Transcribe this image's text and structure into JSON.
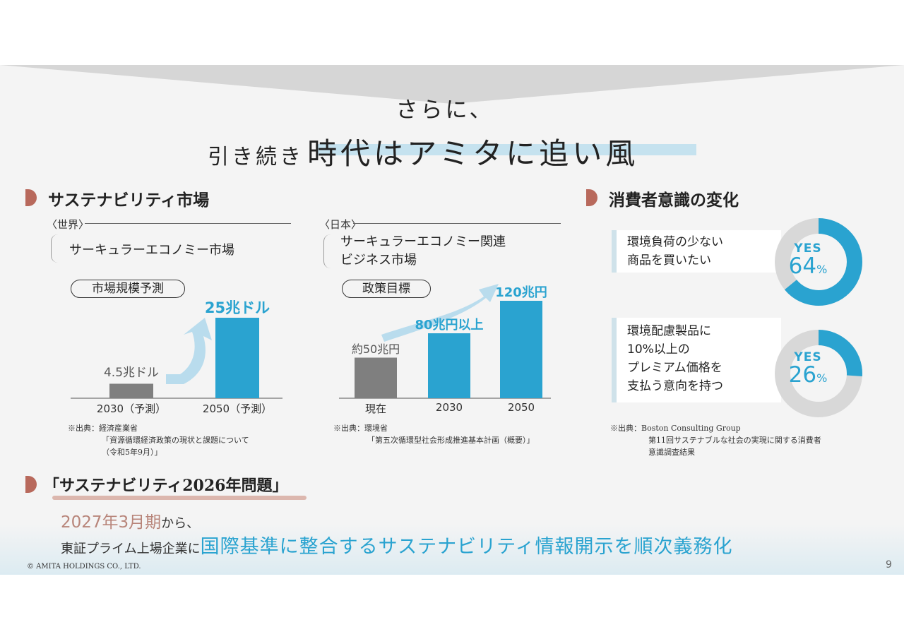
{
  "title": {
    "line1": "さらに、",
    "prefix": "引き続き",
    "emphasis": "時代はアミタに追い風"
  },
  "market": {
    "heading": "サステナビリティ市場",
    "world": {
      "region": "〈世界〉",
      "subject": "サーキュラーエコノミー市場",
      "badge": "市場規模予測",
      "chart_data": {
        "type": "bar",
        "categories": [
          "2030（予測）",
          "2050（予測）"
        ],
        "values": [
          4.5,
          25
        ],
        "value_labels": [
          "4.5兆ドル",
          "25兆ドル"
        ],
        "colors": [
          "#7f7f7f",
          "#2aa3d0"
        ]
      },
      "source": [
        "※出典：経済産業省",
        "「資源循環経済政策の現状と課題について",
        "（令和5年9月）」"
      ]
    },
    "japan": {
      "region": "〈日本〉",
      "subject": [
        "サーキュラーエコノミー関連",
        "ビジネス市場"
      ],
      "badge": "政策目標",
      "chart_data": {
        "type": "bar",
        "categories": [
          "現在",
          "2030",
          "2050"
        ],
        "values": [
          50,
          80,
          120
        ],
        "value_labels": [
          "約50兆円",
          "80兆円以上",
          "120兆円"
        ],
        "colors": [
          "#7f7f7f",
          "#2aa3d0",
          "#2aa3d0"
        ]
      },
      "source": [
        "※出典：環境省",
        "「第五次循環型社会形成推進基本計画（概要）」"
      ]
    }
  },
  "consumer": {
    "heading": "消費者意識の変化",
    "items": [
      {
        "lines": [
          "環境負荷の少ない",
          "商品を買いたい"
        ],
        "yes": "YES",
        "pct": "64",
        "unit": "%",
        "value": 64
      },
      {
        "lines": [
          "環境配慮製品に",
          "10%以上の",
          "プレミアム価格を",
          "支払う意向を持つ"
        ],
        "yes": "YES",
        "pct": "26",
        "unit": "%",
        "value": 26
      }
    ],
    "source": [
      "※出典：Boston Consulting Group",
      "第11回サステナブルな社会の実現に関する消費者",
      "意識調査結果"
    ]
  },
  "issue": {
    "heading": "「サステナビリティ2026年問題」",
    "date": "2027年3月期",
    "date_suffix": "から、",
    "target": "東証プライム上場企業に",
    "statement": "国際基準に整合するサステナビリティ情報開示を順次義務化"
  },
  "footer": {
    "copyright": "© AMITA HOLDINGS CO., LTD.",
    "page": "9"
  },
  "colors": {
    "accent_blue": "#2aa3d0",
    "gray_bar": "#7f7f7f",
    "marker": "#b8695c",
    "date_text": "#b8857a"
  }
}
